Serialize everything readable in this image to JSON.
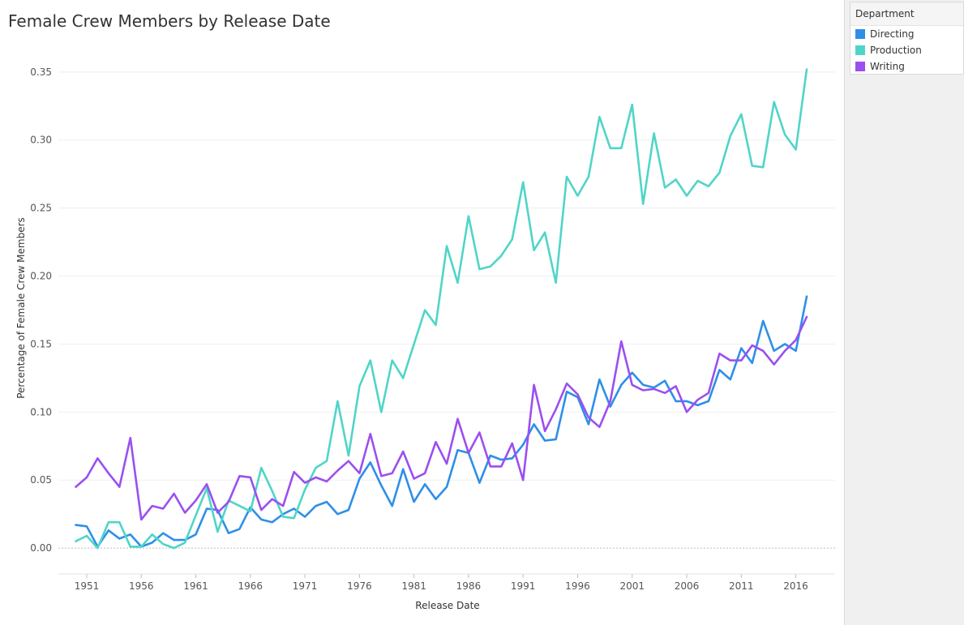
{
  "title": "Female Crew Members by Release Date",
  "legend": {
    "title": "Department",
    "items": [
      {
        "label": "Directing",
        "color": "#2e8fe8"
      },
      {
        "label": "Production",
        "color": "#4fd5c8"
      },
      {
        "label": "Writing",
        "color": "#9b4ff0"
      }
    ]
  },
  "chart_data": {
    "type": "line",
    "title": "Female Crew Members by Release Date",
    "xlabel": "Release Date",
    "ylabel": "Percentage of Female Crew Members",
    "x": [
      1950,
      1951,
      1952,
      1953,
      1954,
      1955,
      1956,
      1957,
      1958,
      1959,
      1960,
      1961,
      1962,
      1963,
      1964,
      1965,
      1966,
      1967,
      1968,
      1969,
      1970,
      1971,
      1972,
      1973,
      1974,
      1975,
      1976,
      1977,
      1978,
      1979,
      1980,
      1981,
      1982,
      1983,
      1984,
      1985,
      1986,
      1987,
      1988,
      1989,
      1990,
      1991,
      1992,
      1993,
      1994,
      1995,
      1996,
      1997,
      1998,
      1999,
      2000,
      2001,
      2002,
      2003,
      2004,
      2005,
      2006,
      2007,
      2008,
      2009,
      2010,
      2011,
      2012,
      2013,
      2014,
      2015,
      2016,
      2017
    ],
    "xticks": [
      "1951",
      "1956",
      "1961",
      "1966",
      "1971",
      "1976",
      "1981",
      "1986",
      "1991",
      "1996",
      "2001",
      "2006",
      "2011",
      "2016"
    ],
    "yticks": [
      "0.00",
      "0.05",
      "0.10",
      "0.15",
      "0.20",
      "0.25",
      "0.30",
      "0.35"
    ],
    "xlim": [
      1948.4,
      2019.6
    ],
    "ylim": [
      -0.019,
      0.366
    ],
    "grid": true,
    "legend_position": "right",
    "series": [
      {
        "name": "Directing",
        "color": "#2e8fe8",
        "values": [
          0.017,
          0.016,
          0.001,
          0.013,
          0.007,
          0.01,
          0.001,
          0.004,
          0.011,
          0.006,
          0.006,
          0.01,
          0.029,
          0.028,
          0.011,
          0.014,
          0.03,
          0.021,
          0.019,
          0.025,
          0.029,
          0.023,
          0.031,
          0.034,
          0.025,
          0.028,
          0.051,
          0.063,
          0.046,
          0.031,
          0.058,
          0.034,
          0.047,
          0.036,
          0.045,
          0.072,
          0.07,
          0.048,
          0.068,
          0.065,
          0.066,
          0.076,
          0.091,
          0.079,
          0.08,
          0.115,
          0.111,
          0.091,
          0.124,
          0.104,
          0.12,
          0.129,
          0.12,
          0.118,
          0.123,
          0.108,
          0.108,
          0.105,
          0.108,
          0.131,
          0.124,
          0.147,
          0.136,
          0.167,
          0.145,
          0.15,
          0.145,
          0.185
        ]
      },
      {
        "name": "Production",
        "color": "#4fd5c8",
        "values": [
          0.005,
          0.009,
          0.0,
          0.019,
          0.019,
          0.001,
          0.001,
          0.01,
          0.003,
          0.0,
          0.004,
          0.024,
          0.044,
          0.012,
          0.035,
          0.031,
          0.027,
          0.059,
          0.042,
          0.023,
          0.022,
          0.043,
          0.059,
          0.064,
          0.108,
          0.068,
          0.119,
          0.138,
          0.1,
          0.138,
          0.125,
          0.15,
          0.175,
          0.164,
          0.222,
          0.195,
          0.244,
          0.205,
          0.207,
          0.215,
          0.227,
          0.269,
          0.219,
          0.232,
          0.195,
          0.273,
          0.259,
          0.273,
          0.317,
          0.294,
          0.294,
          0.326,
          0.253,
          0.305,
          0.265,
          0.271,
          0.259,
          0.27,
          0.266,
          0.276,
          0.303,
          0.319,
          0.281,
          0.28,
          0.328,
          0.304,
          0.293,
          0.352
        ]
      },
      {
        "name": "Writing",
        "color": "#9b4ff0",
        "values": [
          0.045,
          0.052,
          0.066,
          0.055,
          0.045,
          0.081,
          0.021,
          0.031,
          0.029,
          0.04,
          0.026,
          0.035,
          0.047,
          0.026,
          0.034,
          0.053,
          0.052,
          0.028,
          0.036,
          0.031,
          0.056,
          0.048,
          0.052,
          0.049,
          0.057,
          0.064,
          0.055,
          0.084,
          0.053,
          0.055,
          0.071,
          0.051,
          0.055,
          0.078,
          0.062,
          0.095,
          0.07,
          0.085,
          0.06,
          0.06,
          0.077,
          0.05,
          0.12,
          0.086,
          0.102,
          0.121,
          0.113,
          0.096,
          0.089,
          0.108,
          0.152,
          0.12,
          0.116,
          0.117,
          0.114,
          0.119,
          0.1,
          0.109,
          0.114,
          0.143,
          0.138,
          0.138,
          0.149,
          0.145,
          0.135,
          0.145,
          0.153,
          0.17
        ]
      }
    ]
  }
}
